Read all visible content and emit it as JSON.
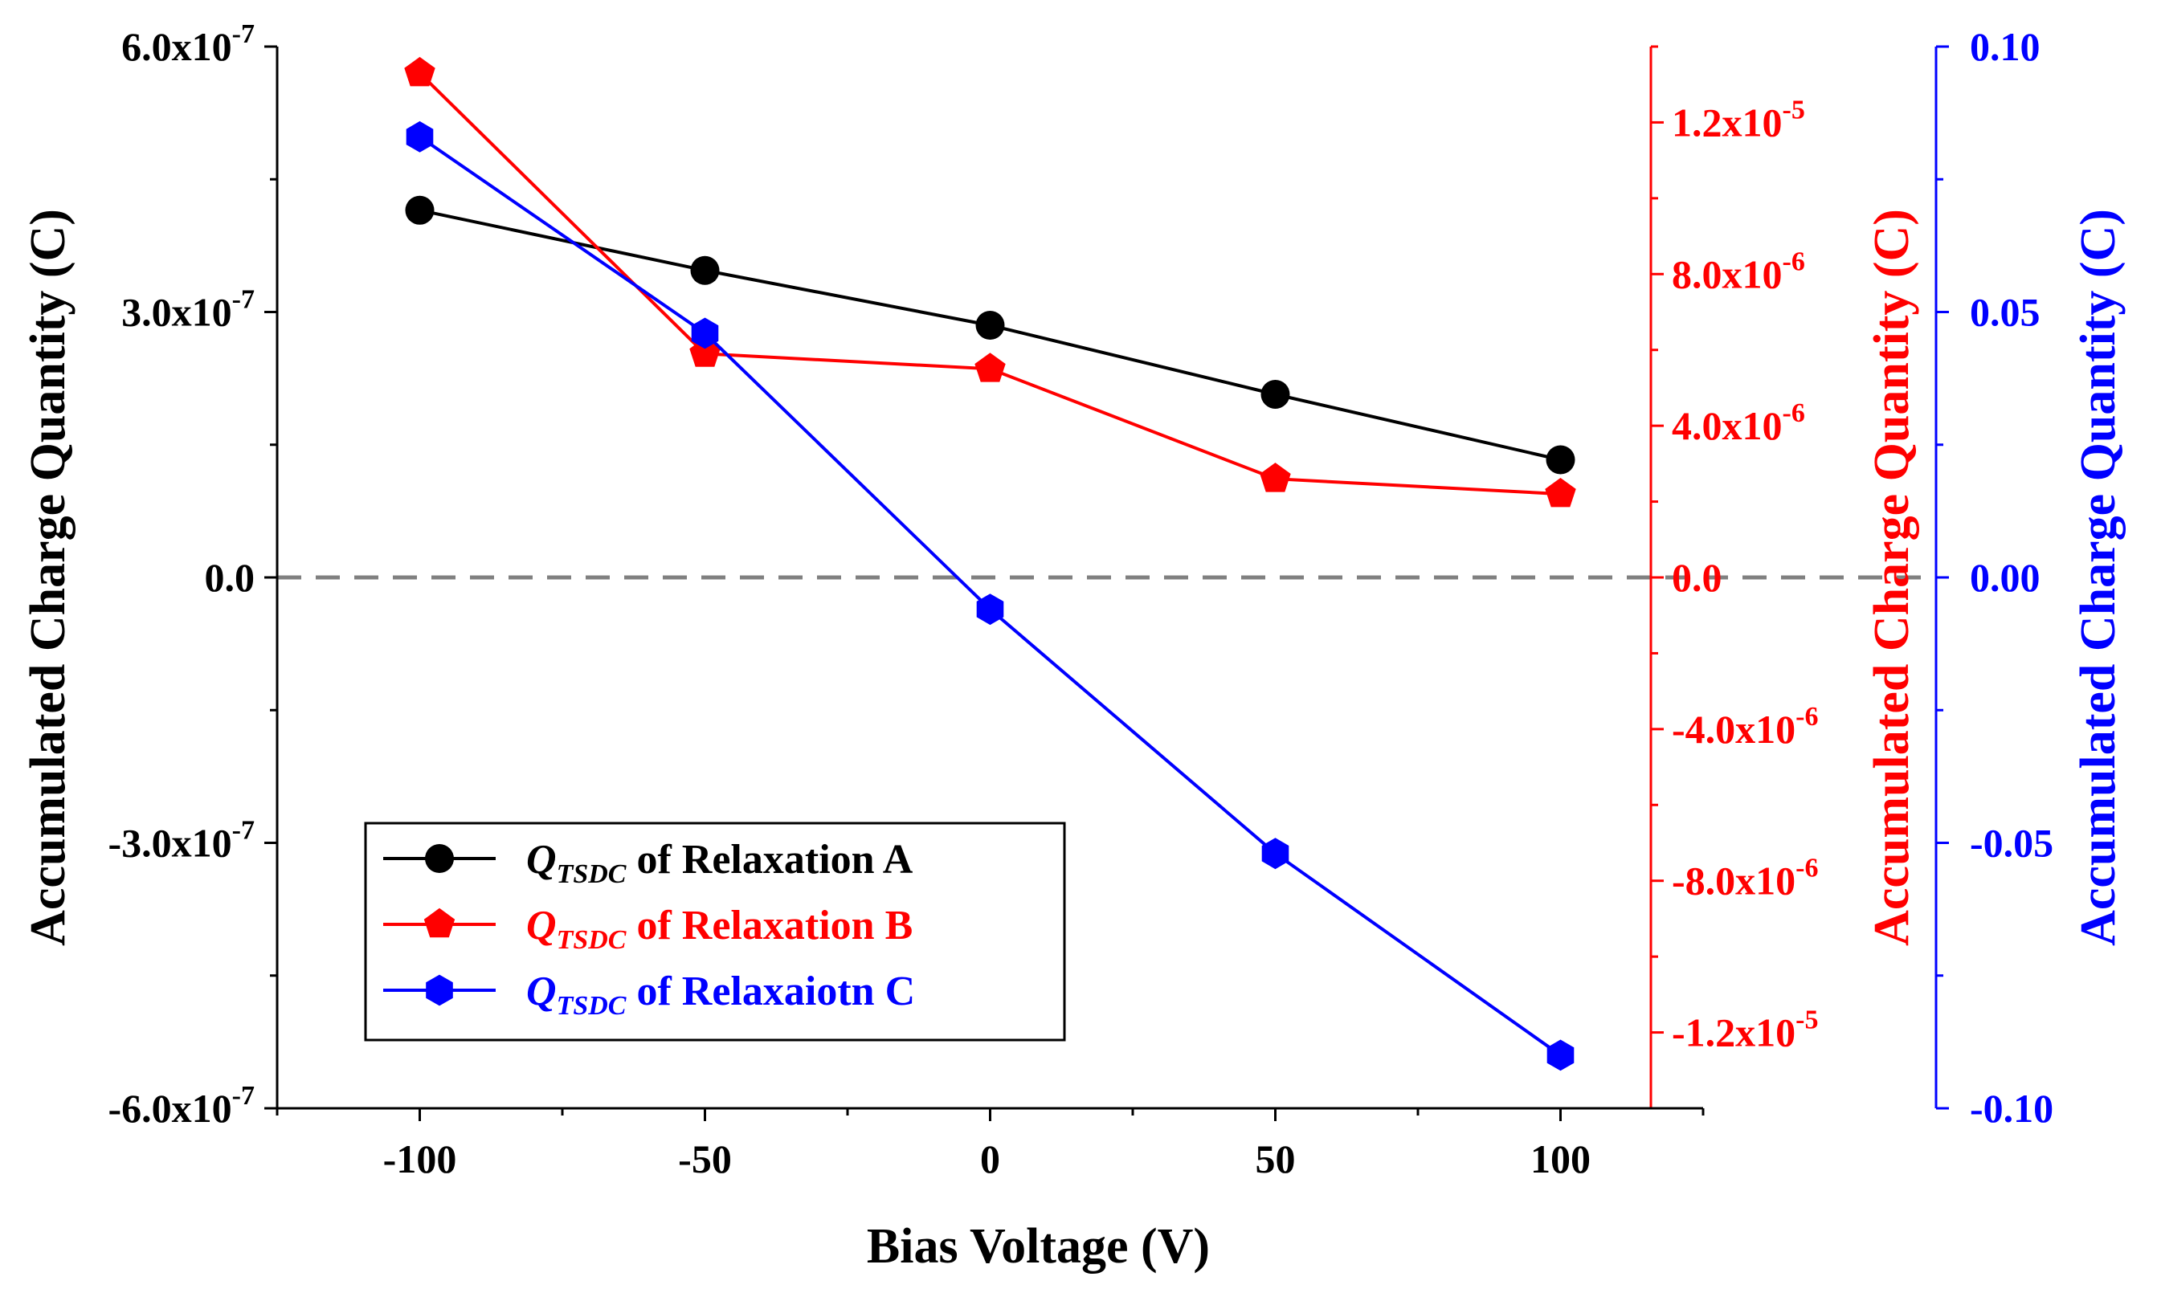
{
  "chart_data": {
    "type": "line",
    "title": "",
    "xlabel": "Bias Voltage (V)",
    "x": [
      -100,
      -50,
      0,
      50,
      100
    ],
    "xlim": [
      -125,
      125
    ],
    "x_ticks": [
      -100,
      -50,
      0,
      50,
      100
    ],
    "x_tick_labels": [
      "-100",
      "-50",
      "0",
      "50",
      "100"
    ],
    "y_axes": {
      "left": {
        "label": "Accumulated Charge Quantity (C)",
        "color": "#000000",
        "ylim": [
          -6e-07,
          6e-07
        ],
        "ticks": [
          -6e-07,
          -3e-07,
          0,
          3e-07,
          6e-07
        ],
        "tick_labels": [
          {
            "mantissa": "-6.0x10",
            "exp": "-7"
          },
          {
            "mantissa": "-3.0x10",
            "exp": "-7"
          },
          {
            "mantissa": "0.0",
            "exp": ""
          },
          {
            "mantissa": "3.0x10",
            "exp": "-7"
          },
          {
            "mantissa": "6.0x10",
            "exp": "-7"
          }
        ]
      },
      "right1": {
        "label": "Accumulated Charge Quantity (C)",
        "color": "#ff0000",
        "ylim": [
          -1.4e-05,
          1.4e-05
        ],
        "ticks": [
          -1.2e-05,
          -8e-06,
          -4e-06,
          0,
          4e-06,
          8e-06,
          1.2e-05
        ],
        "tick_labels": [
          {
            "mantissa": "-1.2x10",
            "exp": "-5"
          },
          {
            "mantissa": "-8.0x10",
            "exp": "-6"
          },
          {
            "mantissa": "-4.0x10",
            "exp": "-6"
          },
          {
            "mantissa": "0.0",
            "exp": ""
          },
          {
            "mantissa": "4.0x10",
            "exp": "-6"
          },
          {
            "mantissa": "8.0x10",
            "exp": "-6"
          },
          {
            "mantissa": "1.2x10",
            "exp": "-5"
          }
        ]
      },
      "right2": {
        "label": "Accumulated Charge Quantity (C)",
        "color": "#0000ff",
        "ylim": [
          -0.1,
          0.1
        ],
        "ticks": [
          -0.1,
          -0.05,
          0,
          0.05,
          0.1
        ],
        "tick_labels": [
          {
            "mantissa": "-0.10",
            "exp": ""
          },
          {
            "mantissa": "-0.05",
            "exp": ""
          },
          {
            "mantissa": "0.00",
            "exp": ""
          },
          {
            "mantissa": "0.05",
            "exp": ""
          },
          {
            "mantissa": "0.10",
            "exp": ""
          }
        ]
      }
    },
    "zero_line": true,
    "series": [
      {
        "name": "of Relaxation A",
        "symbol": "Q",
        "subscript": "TSDC",
        "axis": "left",
        "color": "#000000",
        "marker": "circle",
        "values": [
          4.15e-07,
          3.47e-07,
          2.85e-07,
          2.07e-07,
          1.33e-07
        ]
      },
      {
        "name": "of Relaxation B",
        "symbol": "Q",
        "subscript": "TSDC",
        "axis": "right1",
        "color": "#ff0000",
        "marker": "pentagon",
        "values": [
          1.33e-05,
          5.9e-06,
          5.5e-06,
          2.6e-06,
          2.2e-06
        ]
      },
      {
        "name": "of Relaxaiotn C",
        "symbol": "Q",
        "subscript": "TSDC",
        "axis": "right2",
        "color": "#0000ff",
        "marker": "hexagon",
        "values": [
          0.083,
          0.046,
          -0.006,
          -0.052,
          -0.09
        ]
      }
    ],
    "legend": "lower-left",
    "grid": false
  }
}
